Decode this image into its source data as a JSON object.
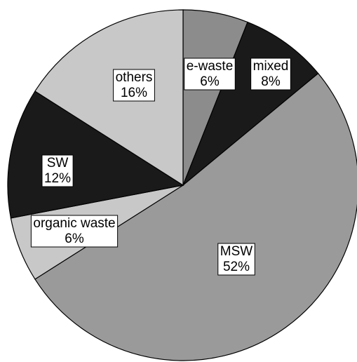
{
  "chart_data": {
    "type": "pie",
    "title": "",
    "start_angle_deg": 0,
    "direction": "clockwise",
    "slices": [
      {
        "label": "e-waste",
        "value": 6,
        "value_label": "6%",
        "color": "#8c8c8c"
      },
      {
        "label": "mixed",
        "value": 8,
        "value_label": "8%",
        "color": "#1a1a1a"
      },
      {
        "label": "MSW",
        "value": 52,
        "value_label": "52%",
        "color": "#9a9a9a"
      },
      {
        "label": "organic waste",
        "value": 6,
        "value_label": "6%",
        "color": "#c8c8c8"
      },
      {
        "label": "SW",
        "value": 12,
        "value_label": "12%",
        "color": "#1a1a1a"
      },
      {
        "label": "others",
        "value": 16,
        "value_label": "16%",
        "color": "#c8c8c8"
      }
    ]
  }
}
